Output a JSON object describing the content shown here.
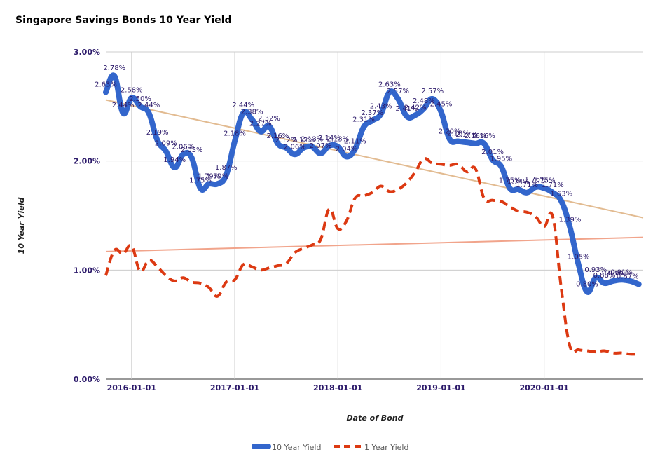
{
  "chart_data": {
    "type": "line",
    "title": "Singapore Savings Bonds 10 Year Yield",
    "xlabel": "Date of Bond",
    "ylabel": "10 Year Yield",
    "y_ticks": [
      "0.00%",
      "1.00%",
      "2.00%",
      "3.00%"
    ],
    "ylim": [
      0,
      3
    ],
    "x_ticks": [
      {
        "label": "2016-01-01",
        "x": 2016.0
      },
      {
        "label": "2017-01-01",
        "x": 2017.0
      },
      {
        "label": "2018-01-01",
        "x": 2018.0
      },
      {
        "label": "2019-01-01",
        "x": 2019.0
      },
      {
        "label": "2020-01-01",
        "x": 2020.0
      }
    ],
    "xlim": [
      2015.75,
      2020.96
    ],
    "grid": true,
    "legend_position": "bottom",
    "series": [
      {
        "name": "10 Year Yield",
        "color": "#3366cc",
        "style": "solid",
        "x": [
          2015.75,
          2015.833,
          2015.917,
          2016.0,
          2016.083,
          2016.167,
          2016.25,
          2016.333,
          2016.417,
          2016.5,
          2016.583,
          2016.667,
          2016.75,
          2016.833,
          2016.917,
          2017.0,
          2017.083,
          2017.167,
          2017.25,
          2017.333,
          2017.417,
          2017.5,
          2017.583,
          2017.667,
          2017.75,
          2017.833,
          2017.917,
          2018.0,
          2018.083,
          2018.167,
          2018.25,
          2018.333,
          2018.417,
          2018.5,
          2018.583,
          2018.667,
          2018.75,
          2018.833,
          2018.917,
          2019.0,
          2019.083,
          2019.167,
          2019.25,
          2019.333,
          2019.417,
          2019.5,
          2019.583,
          2019.667,
          2019.75,
          2019.833,
          2019.917,
          2020.0,
          2020.083,
          2020.167,
          2020.25,
          2020.333,
          2020.417,
          2020.5,
          2020.583,
          2020.667,
          2020.75,
          2020.833,
          2020.917
        ],
        "values": [
          2.63,
          2.78,
          2.44,
          2.58,
          2.5,
          2.44,
          2.19,
          2.09,
          1.94,
          2.06,
          2.03,
          1.75,
          1.79,
          1.79,
          1.87,
          2.18,
          2.44,
          2.38,
          2.27,
          2.32,
          2.16,
          2.12,
          2.06,
          2.12,
          2.13,
          2.07,
          2.14,
          2.13,
          2.04,
          2.11,
          2.31,
          2.37,
          2.43,
          2.63,
          2.57,
          2.41,
          2.42,
          2.48,
          2.57,
          2.45,
          2.2,
          2.18,
          2.17,
          2.16,
          2.16,
          2.01,
          1.95,
          1.75,
          1.74,
          1.71,
          1.76,
          1.75,
          1.71,
          1.63,
          1.39,
          1.05,
          0.8,
          0.93,
          0.88,
          0.9,
          0.91,
          0.9,
          0.87
        ],
        "labels": [
          "2.63%",
          "2.78%",
          "2.44%",
          "2.58%",
          "2.50%",
          "2.44%",
          "2.19%",
          "2.09%",
          "1.94%",
          "2.06%",
          "2.03%",
          "1.75%",
          "1.79%",
          "1.79%",
          "1.87%",
          "2.18%",
          "2.44%",
          "2.38%",
          "2.27%",
          "2.32%",
          "2.16%",
          "2.12%",
          "2.06%",
          "2.12%",
          "2.13%",
          "2.07%",
          "2.14%",
          "2.13%",
          "2.04%",
          "2.11%",
          "2.31%",
          "2.37%",
          "2.43%",
          "2.63%",
          "2.57%",
          "2.41%",
          "2.42%",
          "2.48%",
          "2.57%",
          "2.45%",
          "2.20%",
          "2.18%",
          "2.17%",
          "2.16%",
          "2.16%",
          "2.01%",
          "1.95%",
          "1.75%",
          "1.74%",
          "1.71%",
          "1.76%",
          "1.75%",
          "1.71%",
          "1.63%",
          "1.39%",
          "1.05%",
          "0.80%",
          "0.93%",
          "0.88%",
          "0.90%",
          "0.91%",
          "0.90%",
          "0.87%"
        ]
      },
      {
        "name": "1 Year Yield",
        "color": "#dc3912",
        "style": "dashed",
        "x": [
          2015.75,
          2015.833,
          2015.917,
          2016.0,
          2016.083,
          2016.167,
          2016.25,
          2016.333,
          2016.417,
          2016.5,
          2016.583,
          2016.667,
          2016.75,
          2016.833,
          2016.917,
          2017.0,
          2017.083,
          2017.167,
          2017.25,
          2017.333,
          2017.417,
          2017.5,
          2017.583,
          2017.667,
          2017.75,
          2017.833,
          2017.917,
          2018.0,
          2018.083,
          2018.167,
          2018.25,
          2018.333,
          2018.417,
          2018.5,
          2018.583,
          2018.667,
          2018.75,
          2018.833,
          2018.917,
          2019.0,
          2019.083,
          2019.167,
          2019.25,
          2019.333,
          2019.417,
          2019.5,
          2019.583,
          2019.667,
          2019.75,
          2019.833,
          2019.917,
          2020.0,
          2020.083,
          2020.167,
          2020.25,
          2020.333,
          2020.417,
          2020.5,
          2020.583,
          2020.667,
          2020.75,
          2020.833,
          2020.917
        ],
        "values": [
          0.95,
          1.18,
          1.15,
          1.22,
          0.99,
          1.09,
          1.03,
          0.95,
          0.9,
          0.93,
          0.89,
          0.88,
          0.84,
          0.76,
          0.89,
          0.91,
          1.05,
          1.03,
          1.0,
          1.02,
          1.04,
          1.06,
          1.16,
          1.2,
          1.23,
          1.28,
          1.56,
          1.38,
          1.45,
          1.66,
          1.68,
          1.71,
          1.77,
          1.72,
          1.74,
          1.8,
          1.9,
          2.02,
          1.98,
          1.97,
          1.96,
          1.97,
          1.9,
          1.93,
          1.66,
          1.64,
          1.63,
          1.58,
          1.54,
          1.53,
          1.49,
          1.4,
          1.49,
          0.82,
          0.3,
          0.27,
          0.26,
          0.25,
          0.26,
          0.24,
          0.24,
          0.23,
          0.23
        ]
      }
    ],
    "trendlines": [
      {
        "series": "10 Year Yield",
        "color": "#e2bb91",
        "x": [
          2015.75,
          2020.96
        ],
        "values": [
          2.56,
          1.48
        ]
      },
      {
        "series": "1 Year Yield",
        "color": "#f1a48b",
        "x": [
          2015.75,
          2020.96
        ],
        "values": [
          1.17,
          1.3
        ]
      }
    ]
  }
}
